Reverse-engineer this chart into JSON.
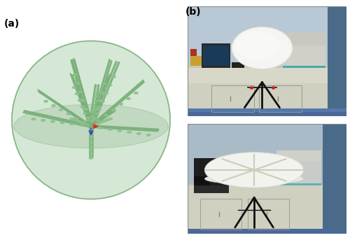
{
  "fig_width": 5.0,
  "fig_height": 3.43,
  "dpi": 100,
  "label_a": "(a)",
  "label_b": "(b)",
  "label_fontsize": 10,
  "background_color": "#ffffff",
  "sphere_fill_color": "#c8dfc8",
  "sphere_edge_color": "#8ab88a",
  "sphere_alpha": 0.75,
  "arm_color": "#78b078",
  "arm_linewidth": 3.5,
  "equator_fill": "#a8c8a8",
  "equator_alpha": 0.45,
  "tld_color": "#90c090",
  "center_red": "#dd2222",
  "center_blue": "#2233cc",
  "photo_border_color": "#888888",
  "photo_border_lw": 0.8,
  "wall_color_top": "#c5d5de",
  "bench_color": "#d8d8c8",
  "floor_color_top": "#5577aa",
  "cabinet_edge": "#aaaaaa",
  "monitor_color": "#222222",
  "sphere_white": "#f5f5f2",
  "tripod_color": "#1a1a1a",
  "arm_angles_deg": [
    -15,
    10,
    35,
    60,
    85,
    110,
    140,
    165,
    190,
    215,
    245,
    270,
    295,
    320
  ],
  "arm_elevations_deg": [
    5,
    40,
    70,
    40,
    5,
    40,
    70,
    5,
    40,
    70,
    40,
    5,
    40,
    70
  ],
  "num_tld_pairs": 6
}
